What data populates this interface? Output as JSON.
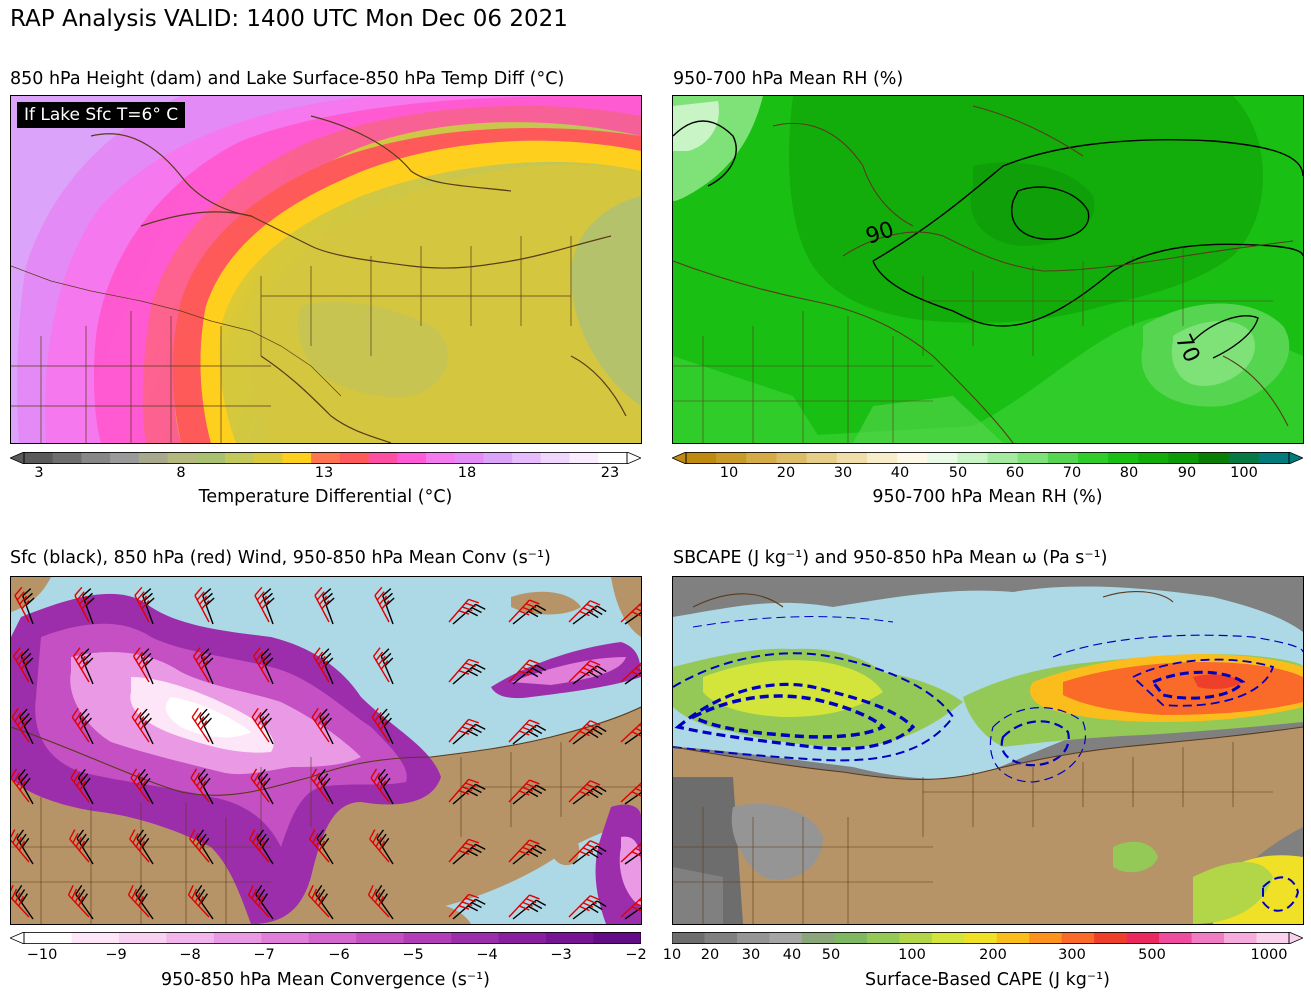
{
  "title": "RAP Analysis VALID: 1400 UTC Mon Dec 06 2021",
  "panels": [
    {
      "title": "850 hPa Height (dam) and Lake Surface-850 hPa Temp Diff (°C)",
      "badge": "If Lake Sfc T=6° C",
      "colorbar": {
        "label": "Temperature Differential (°C)",
        "ticks": [
          "3",
          "8",
          "13",
          "18",
          "23"
        ],
        "colors": [
          "#5a5a5a",
          "#6e6e6e",
          "#878787",
          "#9a9a9a",
          "#a8a88e",
          "#b5b87d",
          "#a8c070",
          "#c3c85a",
          "#d9ca3d",
          "#ffcf1e",
          "#ff7550",
          "#ff5a5a",
          "#ff4fa2",
          "#ff5ad8",
          "#f47af0",
          "#e48af6",
          "#dca3fa",
          "#e6bcfc",
          "#efd6fd",
          "#f8ecfe",
          "#ffffff"
        ]
      }
    },
    {
      "title": "950-700 hPa Mean RH (%)",
      "contour_labels": [
        "90",
        "70"
      ],
      "colorbar": {
        "label": "950-700 hPa Mean RH (%)",
        "ticks": [
          "10",
          "20",
          "30",
          "40",
          "50",
          "60",
          "70",
          "80",
          "90",
          "100"
        ],
        "colors": [
          "#c08a10",
          "#c99a2a",
          "#d4ab46",
          "#dcbc66",
          "#e6cd88",
          "#efdea9",
          "#f7edcb",
          "#fdf8e8",
          "#e9fbe7",
          "#c9f4c5",
          "#a4eba0",
          "#7ee278",
          "#56d650",
          "#30cc2a",
          "#19bf13",
          "#12ad0b",
          "#0c9a07",
          "#087f04",
          "#067a42",
          "#057a7a"
        ]
      }
    },
    {
      "title": "Sfc (black), 850 hPa (red) Wind, 950-850 hPa Mean Conv (s⁻¹)",
      "colorbar": {
        "label": "950-850 hPa Mean Convergence (s⁻¹)",
        "ticks": [
          "−10",
          "−9",
          "−8",
          "−7",
          "−6",
          "−5",
          "−4",
          "−3",
          "−2"
        ],
        "colors": [
          "#ffffff",
          "#fce6f8",
          "#f8d0f2",
          "#f2b6ec",
          "#ea9ae4",
          "#e07ed9",
          "#d466cf",
          "#c450c4",
          "#b13eb8",
          "#9d2eab",
          "#891f9e",
          "#761493",
          "#640b88"
        ]
      }
    },
    {
      "title": "SBCAPE (J kg⁻¹) and 950-850 hPa Mean ω (Pa s⁻¹)",
      "colorbar": {
        "label": "Surface-Based CAPE (J kg⁻¹)",
        "ticks": [
          "10",
          "20",
          "30",
          "40",
          "50",
          "100",
          "200",
          "300",
          "500",
          "1000"
        ],
        "colors": [
          "#6d6d6d",
          "#808080",
          "#959595",
          "#a5a5a5",
          "#8aa67a",
          "#7fb862",
          "#94c958",
          "#b2d648",
          "#d3e53a",
          "#f1e126",
          "#fbbd1c",
          "#fc931e",
          "#fa6a28",
          "#ee3f2a",
          "#ec2860",
          "#ee4c9e",
          "#f07cc4",
          "#f6acdc",
          "#fad2ee"
        ]
      }
    }
  ]
}
